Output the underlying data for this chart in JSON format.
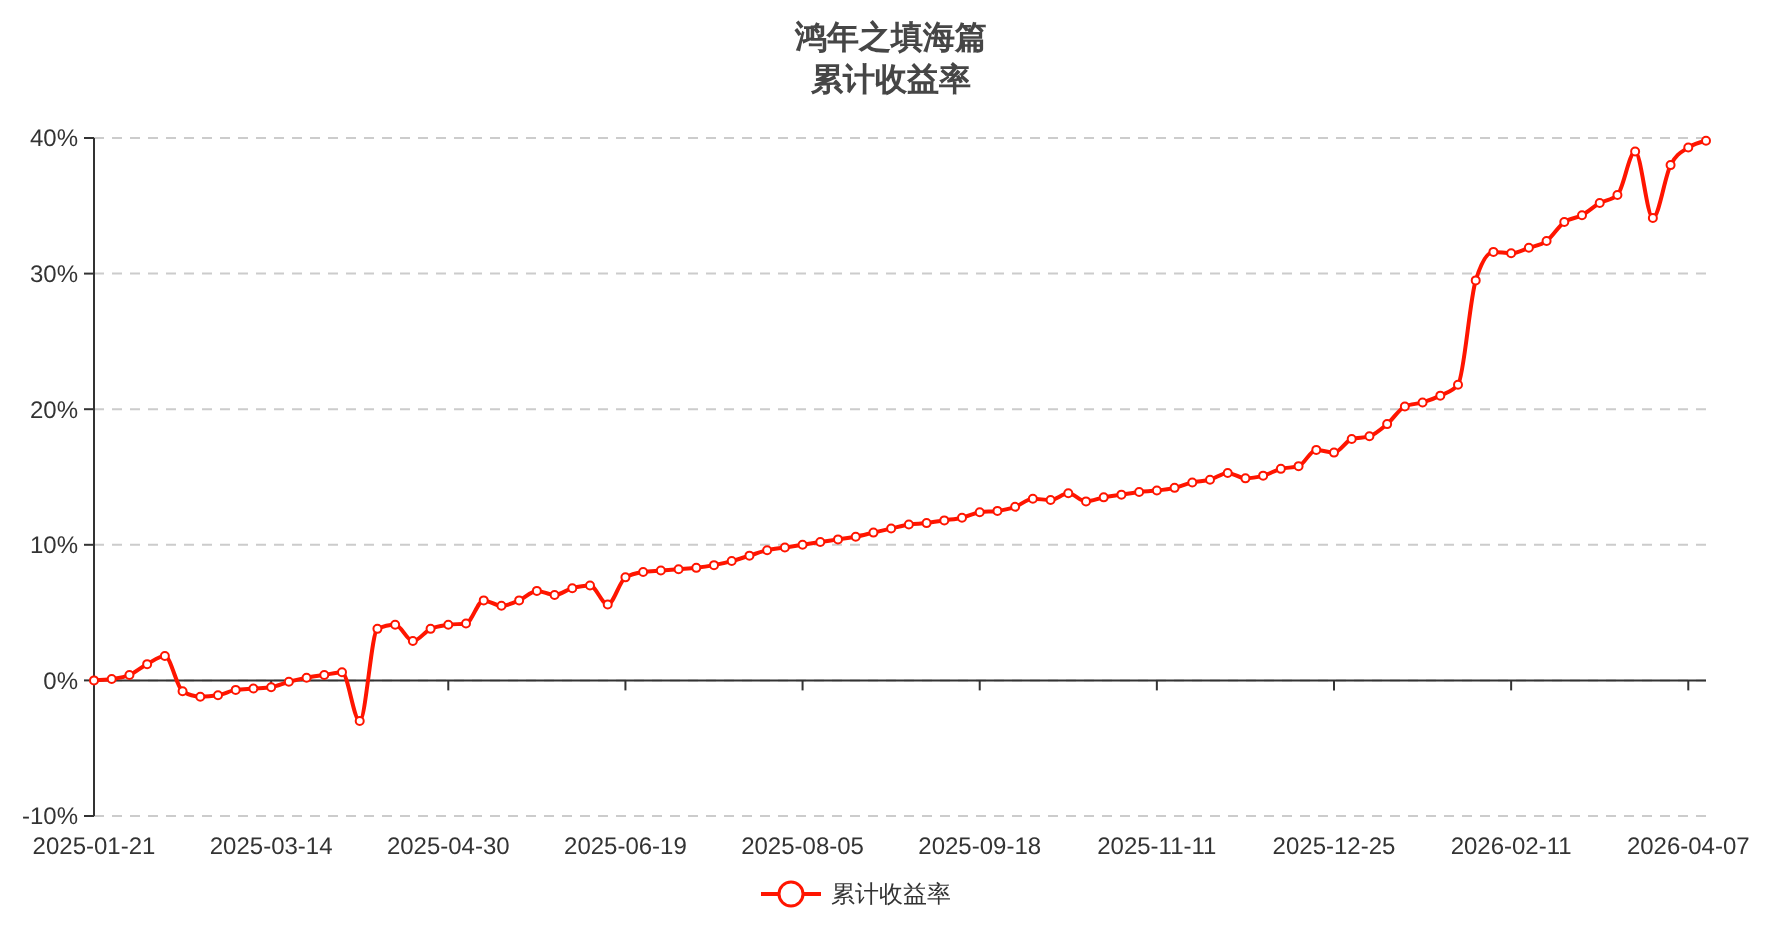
{
  "chart_data": {
    "type": "line",
    "title": "鸿年之填海篇",
    "subtitle": "累计收益率",
    "categories": [
      "2025-01-21",
      null,
      null,
      null,
      null,
      null,
      null,
      null,
      null,
      null,
      "2025-03-14",
      null,
      null,
      null,
      null,
      null,
      null,
      null,
      null,
      null,
      "2025-04-30",
      null,
      null,
      null,
      null,
      null,
      null,
      null,
      null,
      null,
      "2025-06-19",
      null,
      null,
      null,
      null,
      null,
      null,
      null,
      null,
      null,
      "2025-08-05",
      null,
      null,
      null,
      null,
      null,
      null,
      null,
      null,
      null,
      "2025-09-18",
      null,
      null,
      null,
      null,
      null,
      null,
      null,
      null,
      null,
      "2025-11-11",
      null,
      null,
      null,
      null,
      null,
      null,
      null,
      null,
      null,
      "2025-12-25",
      null,
      null,
      null,
      null,
      null,
      null,
      null,
      null,
      null,
      "2026-02-11",
      null,
      null,
      null,
      null,
      null,
      null,
      null,
      null,
      null,
      "2026-04-07",
      null
    ],
    "series": [
      {
        "name": "累计收益率",
        "color": "#ff1500",
        "values": [
          0,
          0.1,
          0.4,
          1.2,
          1.8,
          -0.8,
          -1.2,
          -1.1,
          -0.7,
          -0.6,
          -0.5,
          -0.1,
          0.2,
          0.4,
          0.6,
          -3.0,
          3.8,
          4.1,
          2.9,
          3.8,
          4.1,
          4.2,
          5.9,
          5.5,
          5.9,
          6.6,
          6.3,
          6.8,
          7.0,
          5.6,
          7.6,
          8.0,
          8.1,
          8.2,
          8.3,
          8.5,
          8.8,
          9.2,
          9.6,
          9.8,
          10.0,
          10.2,
          10.4,
          10.6,
          10.9,
          11.2,
          11.5,
          11.6,
          11.8,
          12.0,
          12.4,
          12.5,
          12.8,
          13.4,
          13.3,
          13.8,
          13.2,
          13.5,
          13.7,
          13.9,
          14.0,
          14.2,
          14.6,
          14.8,
          15.3,
          14.9,
          15.1,
          15.6,
          15.8,
          17.0,
          16.8,
          17.8,
          18.0,
          18.9,
          20.2,
          20.5,
          21.0,
          21.8,
          29.5,
          31.6,
          31.5,
          31.9,
          32.4,
          33.8,
          34.3,
          35.2,
          35.8,
          39.0,
          34.1,
          38.0,
          39.3,
          39.8
        ]
      }
    ],
    "ylim": [
      -10,
      40
    ],
    "yticks": [
      {
        "value": -10,
        "label": "-10%"
      },
      {
        "value": 0,
        "label": "0%"
      },
      {
        "value": 10,
        "label": "10%"
      },
      {
        "value": 20,
        "label": "20%"
      },
      {
        "value": 30,
        "label": "30%"
      },
      {
        "value": 40,
        "label": "40%"
      }
    ],
    "grid": "y",
    "legend": "bottom",
    "marker": "circle",
    "line_style": "solid"
  }
}
